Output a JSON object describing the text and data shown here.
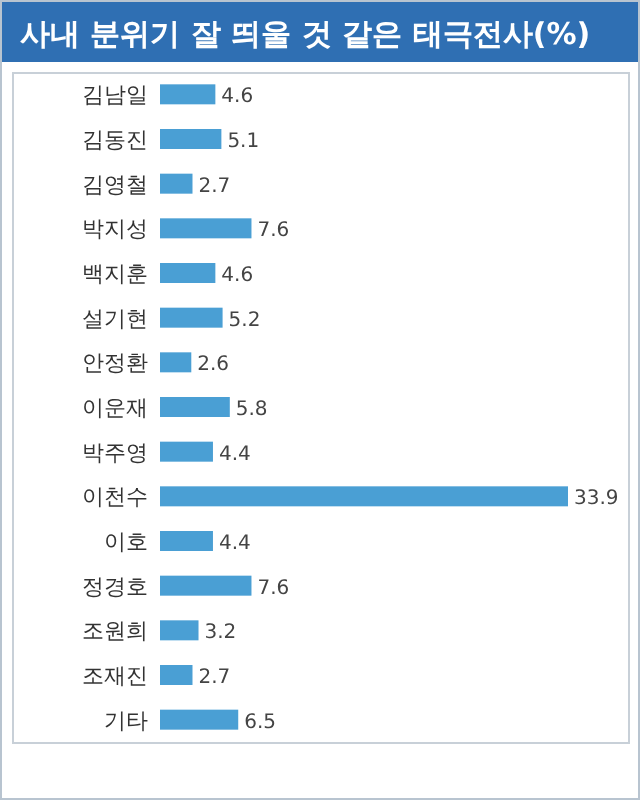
{
  "chart_data": {
    "type": "bar",
    "orientation": "horizontal",
    "title": "사내 분위기 잘 띄울 것 같은 태극전사(%)",
    "categories": [
      "김남일",
      "김동진",
      "김영철",
      "박지성",
      "백지훈",
      "설기현",
      "안정환",
      "이운재",
      "박주영",
      "이천수",
      "이호",
      "정경호",
      "조원희",
      "조재진",
      "기타"
    ],
    "values": [
      4.6,
      5.1,
      2.7,
      7.6,
      4.6,
      5.2,
      2.6,
      5.8,
      4.4,
      33.9,
      4.4,
      7.6,
      3.2,
      2.7,
      6.5
    ],
    "color": "#4a9fd4",
    "data_labels": true
  }
}
